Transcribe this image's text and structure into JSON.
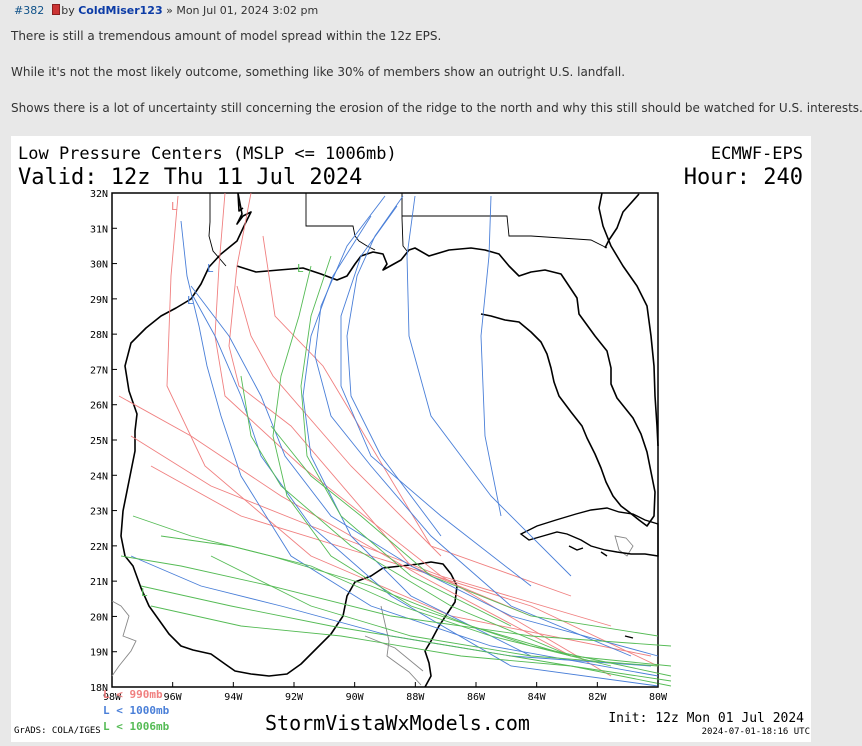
{
  "post": {
    "number": "#382",
    "by": "by",
    "author": "ColdMiser123",
    "date": "» Mon Jul 01, 2024 3:02 pm",
    "paragraphs": [
      "There is still a tremendous amount of model spread within the 12z EPS.",
      "While it's not the most likely outcome, something like 30% of members show an outright U.S. landfall.",
      "Shows there is a lot of uncertainty still concerning the erosion of the ridge to the north and why this still should be watched for U.S. interests."
    ]
  },
  "figure": {
    "title_left": "Low Pressure Centers (MSLP <= 1006mb)",
    "title_right": "ECMWF-EPS",
    "valid": "Valid: 12z Thu 11 Jul 2024",
    "hour": "Hour: 240",
    "legend": [
      {
        "label": "L < 990mb",
        "color": "#f08080"
      },
      {
        "label": "L < 1000mb",
        "color": "#4a7fd8"
      },
      {
        "label": "L < 1006mb",
        "color": "#55bb55"
      }
    ],
    "grads_label": "GrADS: COLA/IGES",
    "watermark": "StormVistaWxModels.com",
    "init": "Init: 12z Mon 01 Jul 2024",
    "timestamp": "2024-07-01-18:16 UTC",
    "lat_labels": [
      "32N",
      "31N",
      "30N",
      "29N",
      "28N",
      "27N",
      "26N",
      "25N",
      "24N",
      "23N",
      "22N",
      "21N",
      "20N",
      "19N",
      "18N"
    ],
    "lon_labels": [
      "98W",
      "96W",
      "94W",
      "92W",
      "90W",
      "88W",
      "86W",
      "84W",
      "82W",
      "80W"
    ],
    "colors": {
      "coast": "#000000",
      "red": "#f08080",
      "blue": "#4a7fd8",
      "green": "#55bb55",
      "border": "#888888"
    }
  }
}
